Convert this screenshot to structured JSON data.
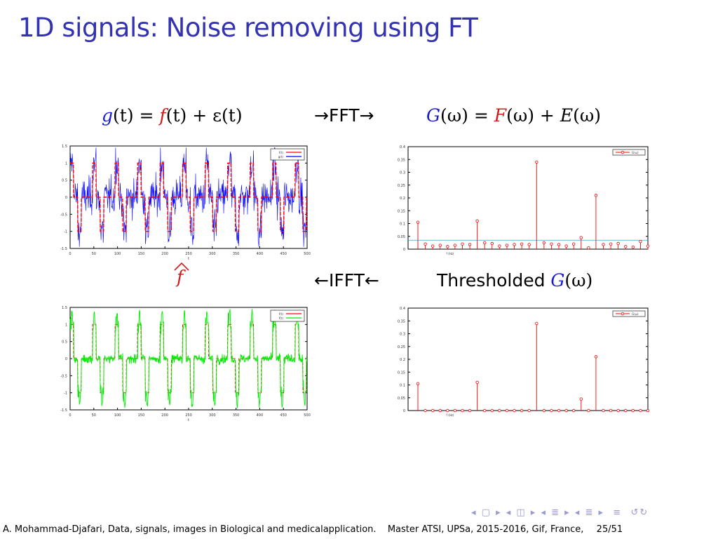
{
  "slide_title": "1D signals: Noise removing using FT",
  "eq_top_left": {
    "g": "g",
    "t1": "(t) = ",
    "f": "f",
    "t2": "(t) + ε(t)"
  },
  "arrow_fft": "→FFT→",
  "eq_top_right": {
    "G": "G",
    "t1": "(ω) = ",
    "F": "F",
    "t2": "(ω) + ",
    "E": "E",
    "t3": "(ω)"
  },
  "fhat": "f",
  "arrow_ifft": "←IFFT←",
  "thresholded": {
    "label": "Thresholded ",
    "G": "G",
    "rest": "(ω)"
  },
  "footer": {
    "author": "A. Mohammad-Djafari,",
    "course": "Data, signals, images in Biological and medicalapplication.",
    "venue": "Master ATSI, UPSa, 2015-2016, Gif, France,",
    "page": "25/51"
  },
  "chart_data": [
    {
      "type": "line",
      "name": "noisy-signal",
      "x_range": [
        0,
        400
      ],
      "ylim": [
        -1.5,
        1.5
      ],
      "yticks": [
        "1.5",
        "1",
        "0.5",
        "0",
        "-0.5",
        "-1",
        "-1.5"
      ],
      "xticks": [
        "0",
        "50",
        "100",
        "150",
        "200",
        "250",
        "300",
        "350",
        "400",
        "450",
        "500"
      ],
      "xlabel": "t",
      "legend": [
        "f(t)",
        "g(t)"
      ],
      "legend_position": "top-right",
      "series_colors": [
        "#ff0000",
        "#0000ff"
      ]
    },
    {
      "type": "stem",
      "name": "spectrum",
      "ylim": [
        0,
        0.4
      ],
      "yticks": [
        "0.4",
        "0.35",
        "0.3",
        "0.25",
        "0.2",
        "0.15",
        "0.1",
        "0.05",
        "0"
      ],
      "xlabel": "f (Hz)",
      "legend": [
        "G(ω)"
      ],
      "legend_position": "top-right",
      "threshold": 0.035,
      "values": [
        0.105,
        0.02,
        0.012,
        0.015,
        0.01,
        0.015,
        0.02,
        0.018,
        0.11,
        0.025,
        0.022,
        0.012,
        0.015,
        0.018,
        0.02,
        0.018,
        0.34,
        0.025,
        0.02,
        0.018,
        0.012,
        0.02,
        0.045,
        0.005,
        0.21,
        0.018,
        0.02,
        0.022,
        0.01,
        0.008,
        0.03,
        0.012
      ]
    },
    {
      "type": "line",
      "name": "denoised-signal",
      "x_range": [
        0,
        400
      ],
      "ylim": [
        -1.5,
        1.5
      ],
      "yticks": [
        "1.5",
        "1",
        "0.5",
        "0",
        "-0.5",
        "-1",
        "-1.5"
      ],
      "xticks": [
        "0",
        "50",
        "100",
        "150",
        "200",
        "250",
        "300",
        "350",
        "400",
        "450",
        "500"
      ],
      "xlabel": "t",
      "legend": [
        "f(t)",
        "f̂(t)"
      ],
      "legend_position": "top-right",
      "series_colors": [
        "#ff0000",
        "#00ee00"
      ]
    },
    {
      "type": "stem",
      "name": "thresholded-spectrum",
      "ylim": [
        0,
        0.4
      ],
      "yticks": [
        "0.4",
        "0.35",
        "0.3",
        "0.25",
        "0.2",
        "0.15",
        "0.1",
        "0.05",
        "0"
      ],
      "xlabel": "f (Hz)",
      "legend": [
        "G(ω)"
      ],
      "legend_position": "top-right",
      "values": [
        0.105,
        0,
        0,
        0,
        0,
        0,
        0,
        0,
        0.11,
        0,
        0,
        0,
        0,
        0,
        0,
        0,
        0.34,
        0,
        0,
        0,
        0,
        0,
        0.045,
        0,
        0.21,
        0,
        0,
        0,
        0,
        0,
        0,
        0
      ]
    }
  ]
}
